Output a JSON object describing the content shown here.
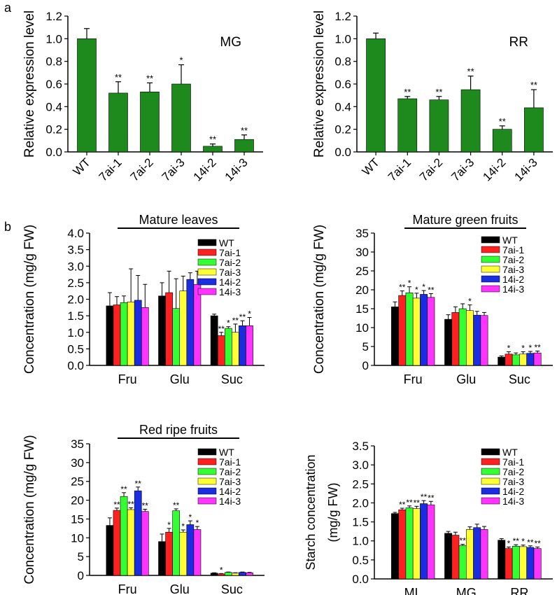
{
  "panel_labels": {
    "a": "a",
    "b": "b"
  },
  "colors": {
    "green_bar": "#1e8a1e",
    "WT": "#000000",
    "7ai-1": "#ff2020",
    "7ai-2": "#33ff33",
    "7ai-3": "#ffff33",
    "14i-2": "#1a2de0",
    "14i-3": "#ff33ff"
  },
  "chart_data": [
    {
      "id": "a_mg",
      "type": "bar",
      "label": "MG",
      "ylabel": "Relative expression level",
      "categories": [
        "WT",
        "7ai-1",
        "7ai-2",
        "7ai-3",
        "14i-2",
        "14i-3"
      ],
      "values": [
        1.0,
        0.52,
        0.53,
        0.6,
        0.05,
        0.11
      ],
      "errors": [
        0.09,
        0.1,
        0.08,
        0.17,
        0.02,
        0.04
      ],
      "sig": [
        "",
        "**",
        "**",
        "*",
        "**",
        "**"
      ],
      "ylim": [
        0,
        1.2
      ],
      "yticks": [
        "0.0",
        "0.2",
        "0.4",
        "0.6",
        "0.8",
        "1.0",
        "1.2"
      ]
    },
    {
      "id": "a_rr",
      "type": "bar",
      "label": "RR",
      "ylabel": "Relative expression level",
      "categories": [
        "WT",
        "7ai-1",
        "7ai-2",
        "7ai-3",
        "14i-2",
        "14i-3"
      ],
      "values": [
        1.0,
        0.47,
        0.46,
        0.55,
        0.2,
        0.39
      ],
      "errors": [
        0.05,
        0.02,
        0.03,
        0.12,
        0.03,
        0.16
      ],
      "sig": [
        "",
        "**",
        "**",
        "**",
        "**",
        "**"
      ],
      "ylim": [
        0,
        1.2
      ],
      "yticks": [
        "0.0",
        "0.2",
        "0.4",
        "0.6",
        "0.8",
        "1.0",
        "1.2"
      ]
    },
    {
      "id": "b_leaves",
      "type": "bar",
      "title": "Mature leaves",
      "ylabel": "Concentration (mg/g FW)",
      "categories": [
        "Fru",
        "Glu",
        "Suc"
      ],
      "legend": [
        "WT",
        "7ai-1",
        "7ai-2",
        "7ai-3",
        "14i-2",
        "14i-3"
      ],
      "series": [
        {
          "name": "WT",
          "values": [
            1.8,
            2.1,
            1.5
          ],
          "errors": [
            0.4,
            0.4,
            0.05
          ],
          "sig": [
            "",
            "",
            ""
          ]
        },
        {
          "name": "7ai-1",
          "values": [
            1.83,
            2.2,
            0.9
          ],
          "errors": [
            0.25,
            0.65,
            0.1
          ],
          "sig": [
            "",
            "",
            "**"
          ]
        },
        {
          "name": "7ai-2",
          "values": [
            1.9,
            1.72,
            1.12
          ],
          "errors": [
            0.2,
            0.9,
            0.05
          ],
          "sig": [
            "",
            "",
            "*"
          ]
        },
        {
          "name": "7ai-3",
          "values": [
            1.92,
            2.25,
            1.0
          ],
          "errors": [
            1.0,
            0.45,
            0.25
          ],
          "sig": [
            "",
            "",
            "**"
          ]
        },
        {
          "name": "14i-2",
          "values": [
            1.97,
            2.6,
            1.2
          ],
          "errors": [
            0.75,
            0.2,
            0.15
          ],
          "sig": [
            "",
            "",
            "**"
          ]
        },
        {
          "name": "14i-3",
          "values": [
            1.75,
            2.45,
            1.2
          ],
          "errors": [
            0.7,
            0.4,
            0.25
          ],
          "sig": [
            "",
            "",
            "*"
          ]
        }
      ],
      "ylim": [
        0,
        4.0
      ],
      "yticks": [
        "0.0",
        "0.5",
        "1.0",
        "1.5",
        "2.0",
        "2.5",
        "3.0",
        "3.5",
        "4.0"
      ]
    },
    {
      "id": "b_mg",
      "type": "bar",
      "title": "Mature green fruits",
      "ylabel": "Concentration (mg/g FW)",
      "categories": [
        "Fru",
        "Glu",
        "Suc"
      ],
      "legend": [
        "WT",
        "7ai-1",
        "7ai-2",
        "7ai-3",
        "14i-2",
        "14i-3"
      ],
      "series": [
        {
          "name": "WT",
          "values": [
            15.5,
            12.2,
            2.2
          ],
          "errors": [
            1.3,
            1.2,
            0.3
          ],
          "sig": [
            "",
            "",
            ""
          ]
        },
        {
          "name": "7ai-1",
          "values": [
            18.5,
            14.0,
            3.0
          ],
          "errors": [
            1.2,
            1.5,
            0.6
          ],
          "sig": [
            "**",
            "",
            "*"
          ]
        },
        {
          "name": "7ai-2",
          "values": [
            19.2,
            15.0,
            2.8
          ],
          "errors": [
            1.6,
            1.3,
            0.5
          ],
          "sig": [
            "*",
            "",
            ""
          ]
        },
        {
          "name": "7ai-3",
          "values": [
            17.8,
            14.5,
            3.0
          ],
          "errors": [
            1.3,
            1.5,
            0.6
          ],
          "sig": [
            "*",
            "*",
            "*"
          ]
        },
        {
          "name": "14i-2",
          "values": [
            18.8,
            13.3,
            3.2
          ],
          "errors": [
            1.0,
            1.0,
            0.5
          ],
          "sig": [
            "*",
            "",
            "*"
          ]
        },
        {
          "name": "14i-3",
          "values": [
            18.0,
            13.2,
            3.3
          ],
          "errors": [
            1.0,
            0.8,
            0.5
          ],
          "sig": [
            "**",
            "",
            "**"
          ]
        }
      ],
      "ylim": [
        0,
        35
      ],
      "yticks": [
        "0",
        "5",
        "10",
        "15",
        "20",
        "25",
        "30",
        "35"
      ]
    },
    {
      "id": "b_rr",
      "type": "bar",
      "title": "Red ripe fruits",
      "ylabel": "Concentration (mg/g FW)",
      "categories": [
        "Fru",
        "Glu",
        "Suc"
      ],
      "legend": [
        "WT",
        "7ai-1",
        "7ai-2",
        "7ai-3",
        "14i-2",
        "14i-3"
      ],
      "series": [
        {
          "name": "WT",
          "values": [
            13.3,
            9.0,
            0.6
          ],
          "errors": [
            2.0,
            2.0,
            0.1
          ],
          "sig": [
            "",
            "",
            ""
          ]
        },
        {
          "name": "7ai-1",
          "values": [
            17.3,
            11.5,
            0.4
          ],
          "errors": [
            0.6,
            1.0,
            0.1
          ],
          "sig": [
            "**",
            "*",
            "*"
          ]
        },
        {
          "name": "7ai-2",
          "values": [
            21.0,
            17.2,
            0.8
          ],
          "errors": [
            1.0,
            0.5,
            0.1
          ],
          "sig": [
            "**",
            "**",
            ""
          ]
        },
        {
          "name": "7ai-3",
          "values": [
            17.5,
            11.5,
            0.6
          ],
          "errors": [
            0.5,
            0.6,
            0.1
          ],
          "sig": [
            "**",
            "*",
            ""
          ]
        },
        {
          "name": "14i-2",
          "values": [
            22.5,
            13.5,
            0.8
          ],
          "errors": [
            1.0,
            1.0,
            0.1
          ],
          "sig": [
            "**",
            "*",
            ""
          ]
        },
        {
          "name": "14i-3",
          "values": [
            17.0,
            12.2,
            0.7
          ],
          "errors": [
            0.6,
            0.8,
            0.1
          ],
          "sig": [
            "**",
            "*",
            ""
          ]
        }
      ],
      "ylim": [
        0,
        35
      ],
      "yticks": [
        "0",
        "5",
        "10",
        "15",
        "20",
        "25",
        "30",
        "35"
      ]
    },
    {
      "id": "b_starch",
      "type": "bar",
      "ylabel": "Starch concentration (mg/g FW)",
      "ylabel_lines": [
        "Starch concentration",
        "(mg/g FW)"
      ],
      "categories": [
        "ML",
        "MG",
        "RR"
      ],
      "legend": [
        "WT",
        "7ai-1",
        "7ai-2",
        "7ai-3",
        "14i-2",
        "14i-3"
      ],
      "series": [
        {
          "name": "WT",
          "values": [
            1.72,
            1.2,
            1.02
          ],
          "errors": [
            0.03,
            0.05,
            0.04
          ],
          "sig": [
            "",
            "",
            ""
          ]
        },
        {
          "name": "7ai-1",
          "values": [
            1.82,
            1.15,
            0.8
          ],
          "errors": [
            0.04,
            0.08,
            0.04
          ],
          "sig": [
            "**",
            "",
            "*"
          ]
        },
        {
          "name": "7ai-2",
          "values": [
            1.87,
            0.88,
            0.86
          ],
          "errors": [
            0.05,
            0.03,
            0.04
          ],
          "sig": [
            "**",
            "**",
            "**"
          ]
        },
        {
          "name": "7ai-3",
          "values": [
            1.85,
            1.3,
            0.85
          ],
          "errors": [
            0.06,
            0.07,
            0.04
          ],
          "sig": [
            "**",
            "",
            "*"
          ]
        },
        {
          "name": "14i-2",
          "values": [
            1.98,
            1.35,
            0.83
          ],
          "errors": [
            0.08,
            0.09,
            0.04
          ],
          "sig": [
            "**",
            "",
            "**"
          ]
        },
        {
          "name": "14i-3",
          "values": [
            1.95,
            1.3,
            0.8
          ],
          "errors": [
            0.09,
            0.08,
            0.04
          ],
          "sig": [
            "**",
            "",
            "**"
          ]
        }
      ],
      "ylim": [
        0,
        3.5
      ],
      "yticks": [
        "0.0",
        "0.5",
        "1.0",
        "1.5",
        "2.0",
        "2.5",
        "3.0",
        "3.5"
      ]
    }
  ]
}
